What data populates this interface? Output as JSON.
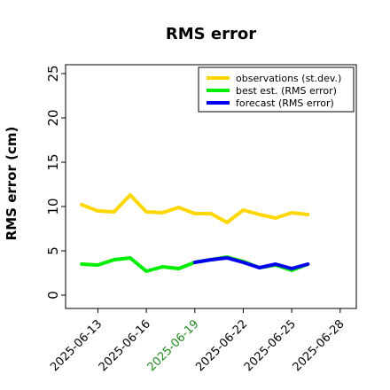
{
  "chart_data": {
    "type": "line",
    "title": "RMS error",
    "ylabel": "RMS error (cm)",
    "xlabel": "",
    "ylim": [
      -1.5,
      26
    ],
    "yticks": [
      0,
      5,
      10,
      15,
      20,
      25
    ],
    "xlim": [
      "2025-06-11",
      "2025-06-29"
    ],
    "xticks": [
      "2025-06-13",
      "2025-06-16",
      "2025-06-19",
      "2025-06-22",
      "2025-06-25",
      "2025-06-28"
    ],
    "highlighted_xtick": "2025-06-19",
    "highlight_color": "#228b22",
    "grid": false,
    "legend_position": "top-right",
    "series": [
      {
        "name": "observations (st.dev.)",
        "color": "#ffd700",
        "x": [
          "2025-06-12",
          "2025-06-13",
          "2025-06-14",
          "2025-06-15",
          "2025-06-16",
          "2025-06-17",
          "2025-06-18",
          "2025-06-19",
          "2025-06-20",
          "2025-06-21",
          "2025-06-22",
          "2025-06-23",
          "2025-06-24",
          "2025-06-25",
          "2025-06-26"
        ],
        "values": [
          10.2,
          9.5,
          9.4,
          11.3,
          9.4,
          9.3,
          9.9,
          9.2,
          9.2,
          8.2,
          9.6,
          9.1,
          8.7,
          9.3,
          9.1
        ]
      },
      {
        "name": "best est. (RMS error)",
        "color": "#00ee00",
        "x": [
          "2025-06-12",
          "2025-06-13",
          "2025-06-14",
          "2025-06-15",
          "2025-06-16",
          "2025-06-17",
          "2025-06-18",
          "2025-06-19",
          "2025-06-20",
          "2025-06-21",
          "2025-06-22",
          "2025-06-23",
          "2025-06-24",
          "2025-06-25",
          "2025-06-26"
        ],
        "values": [
          3.5,
          3.4,
          4.0,
          4.2,
          2.7,
          3.2,
          3.0,
          3.7,
          4.0,
          4.3,
          3.8,
          3.1,
          3.4,
          2.8,
          3.5
        ]
      },
      {
        "name": "forecast (RMS error)",
        "color": "#0000ee",
        "x": [
          "2025-06-19",
          "2025-06-20",
          "2025-06-21",
          "2025-06-22",
          "2025-06-23",
          "2025-06-24",
          "2025-06-25",
          "2025-06-26"
        ],
        "values": [
          3.7,
          4.0,
          4.2,
          3.7,
          3.1,
          3.5,
          3.0,
          3.5
        ]
      }
    ]
  }
}
